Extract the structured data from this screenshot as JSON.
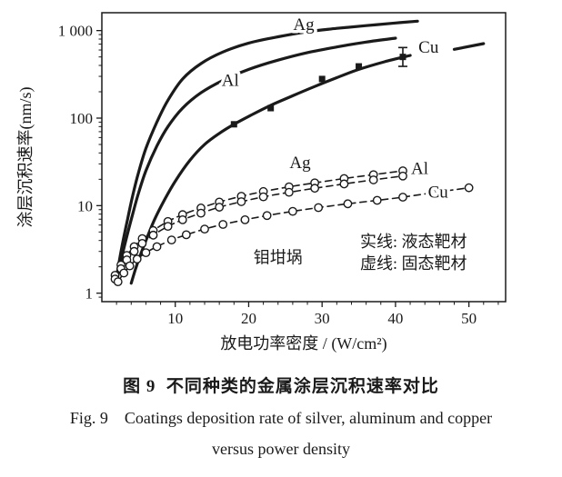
{
  "figure": {
    "caption_cn": "图 9  不同种类的金属涂层沉积速率对比",
    "caption_en_line1": "Fig. 9    Coatings deposition rate of silver, aluminum and copper",
    "caption_en_line2": "versus power density"
  },
  "chart_data": {
    "type": "line",
    "title": "",
    "x_scale": "linear",
    "y_scale": "log",
    "xlabel": "放电功率密度 / (W/cm²)",
    "ylabel": "涂层沉积速率(nm/s)",
    "xlim": [
      0,
      55
    ],
    "ylim": [
      0.8,
      1600
    ],
    "x_ticks": [
      10,
      20,
      30,
      40,
      50
    ],
    "x_minor_step": 2,
    "y_ticks": [
      1,
      10,
      100,
      1000
    ],
    "y_tick_labels": [
      "1",
      "10",
      "100",
      "1 000"
    ],
    "grid": false,
    "colors": {
      "line": "#1a1a1a",
      "background": "#ffffff"
    },
    "annotation": {
      "text": "钼坩埚",
      "x": 24,
      "y": 2.2
    },
    "legend": {
      "position": "inside-lower-right",
      "lines": [
        "实线: 液态靶材",
        "虚线: 固态靶材"
      ]
    },
    "series": [
      {
        "id": "ag-liquid",
        "name": "Ag 液态靶材",
        "style": "solid",
        "marker": "none",
        "label": "Ag",
        "label_pos": [
          27.5,
          1020
        ],
        "x": [
          2,
          2.4,
          2.9,
          3.5,
          4.2,
          5,
          6,
          7.5,
          9,
          11,
          13.5,
          16.5,
          20,
          24,
          28,
          32,
          36,
          40,
          43
        ],
        "y": [
          1.5,
          2.4,
          4,
          7,
          13,
          24,
          45,
          90,
          160,
          280,
          420,
          570,
          720,
          850,
          970,
          1060,
          1140,
          1220,
          1280
        ]
      },
      {
        "id": "al-liquid",
        "name": "Al 液态靶材",
        "style": "solid",
        "marker": "none",
        "label": "Al",
        "label_pos": [
          17.5,
          235
        ],
        "x": [
          2,
          2.4,
          2.9,
          3.5,
          4.2,
          5,
          6,
          7.5,
          9,
          11,
          13.5,
          16.5,
          20,
          24,
          28,
          32,
          36,
          40
        ],
        "y": [
          1.4,
          2.0,
          3.0,
          4.8,
          8,
          14,
          25,
          48,
          80,
          130,
          195,
          270,
          360,
          460,
          560,
          650,
          740,
          820
        ]
      },
      {
        "id": "cu-liquid",
        "name": "Cu 液态靶材",
        "style": "solid",
        "marker": "square",
        "label": "Cu",
        "label_pos": [
          44.5,
          560
        ],
        "x": [
          4,
          4.6,
          5.3,
          6.2,
          7.2,
          8.5,
          10,
          12,
          14,
          16,
          18,
          20.5,
          23,
          26,
          29,
          32,
          35,
          38.5,
          42
        ],
        "y": [
          1.3,
          1.9,
          2.8,
          4.4,
          7,
          11.5,
          19,
          33,
          50,
          67,
          85,
          110,
          140,
          180,
          230,
          290,
          360,
          440,
          520
        ],
        "marker_x": [
          18,
          23,
          30,
          35,
          41
        ],
        "marker_y": [
          85,
          130,
          280,
          390,
          500
        ],
        "errorbar": {
          "x": 41,
          "low": 390,
          "high": 640
        }
      },
      {
        "id": "cu-liquid-ext",
        "name": "Cu 液态靶材(延伸段)",
        "style": "solid",
        "marker": "none",
        "x": [
          48,
          52
        ],
        "y": [
          610,
          710
        ]
      },
      {
        "id": "ag-solid-target",
        "name": "Ag 固态靶材",
        "style": "dashed",
        "marker": "circle",
        "label": "Ag",
        "label_pos": [
          27,
          27
        ],
        "x": [
          1.8,
          2.6,
          3.4,
          4.4,
          5.5,
          7,
          9,
          11,
          13.5,
          16,
          19,
          22,
          25.5,
          29,
          33,
          37,
          41
        ],
        "y": [
          1.6,
          2.1,
          2.7,
          3.4,
          4.2,
          5.2,
          6.6,
          7.9,
          9.4,
          11,
          12.8,
          14.5,
          16.4,
          18.2,
          20.4,
          22.6,
          25
        ]
      },
      {
        "id": "al-solid-target",
        "name": "Al 固态靶材",
        "style": "dashed",
        "marker": "circle",
        "label": "Al",
        "label_pos": [
          43.3,
          23
        ],
        "x": [
          1.8,
          2.6,
          3.4,
          4.4,
          5.5,
          7,
          9,
          11,
          13.5,
          16,
          19,
          22,
          25.5,
          29,
          33,
          37,
          41
        ],
        "y": [
          1.45,
          1.9,
          2.4,
          3.0,
          3.7,
          4.6,
          5.8,
          6.9,
          8.2,
          9.6,
          11.1,
          12.6,
          14.2,
          15.8,
          17.7,
          19.7,
          21.8
        ]
      },
      {
        "id": "cu-solid-target",
        "name": "Cu 固态靶材",
        "style": "dashed",
        "marker": "circle",
        "label": "Cu",
        "label_pos": [
          45.8,
          12.3
        ],
        "x": [
          2.2,
          3.0,
          3.8,
          4.8,
          6,
          7.5,
          9.5,
          11.5,
          14,
          16.5,
          19.5,
          22.5,
          26,
          29.5,
          33.5,
          37.5,
          41,
          45,
          50
        ],
        "y": [
          1.35,
          1.7,
          2.05,
          2.45,
          2.9,
          3.4,
          4.05,
          4.65,
          5.4,
          6.1,
          6.9,
          7.7,
          8.6,
          9.5,
          10.5,
          11.5,
          12.5,
          14,
          16
        ]
      }
    ]
  }
}
